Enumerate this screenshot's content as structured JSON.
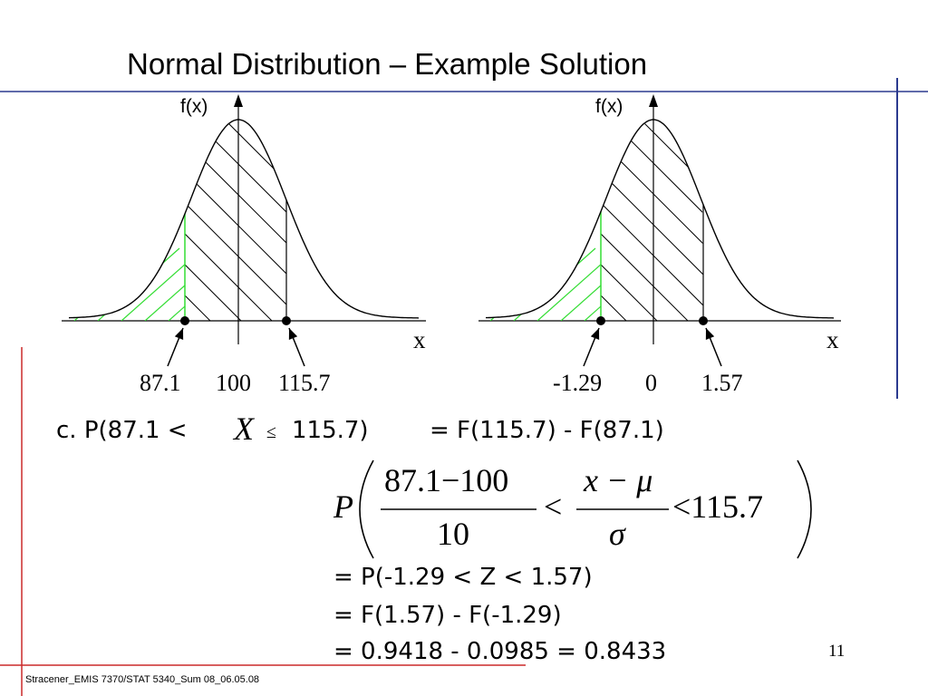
{
  "title": "Normal Distribution – Example Solution",
  "colors": {
    "blue_rule": "#2b3a8f",
    "red_rule": "#cc2a2a",
    "green_hatch": "#33dd33",
    "curve": "#000000"
  },
  "left_plot": {
    "ylabel": "f(x)",
    "xlabel": "x",
    "ticks": {
      "low": "87.1",
      "mean": "100",
      "high": "115.7"
    }
  },
  "right_plot": {
    "ylabel": "f(x)",
    "xlabel": "x",
    "ticks": {
      "low": "-1.29",
      "mean": "0",
      "high": "1.57"
    }
  },
  "solution": {
    "part_label": "c. P(87.1 <",
    "variable": "X",
    "leq": "≤",
    "upper_expr": "115.7)",
    "equals_cdf": "= F(115.7) - F(87.1)",
    "formula": {
      "P": "P",
      "numerator_left": "87.1−100",
      "denominator_left": "10",
      "less_than": "<",
      "numerator_mid": "x − μ",
      "denominator_mid": "σ",
      "right_tail": "<115.7"
    },
    "steps": [
      "= P(-1.29 < Z < 1.57)",
      "= F(1.57) - F(-1.29)",
      "= 0.9418 - 0.0985 = 0.8433"
    ]
  },
  "slide_number": "11",
  "footer": "Stracener_EMIS 7370/STAT 5340_Sum 08_06.05.08"
}
